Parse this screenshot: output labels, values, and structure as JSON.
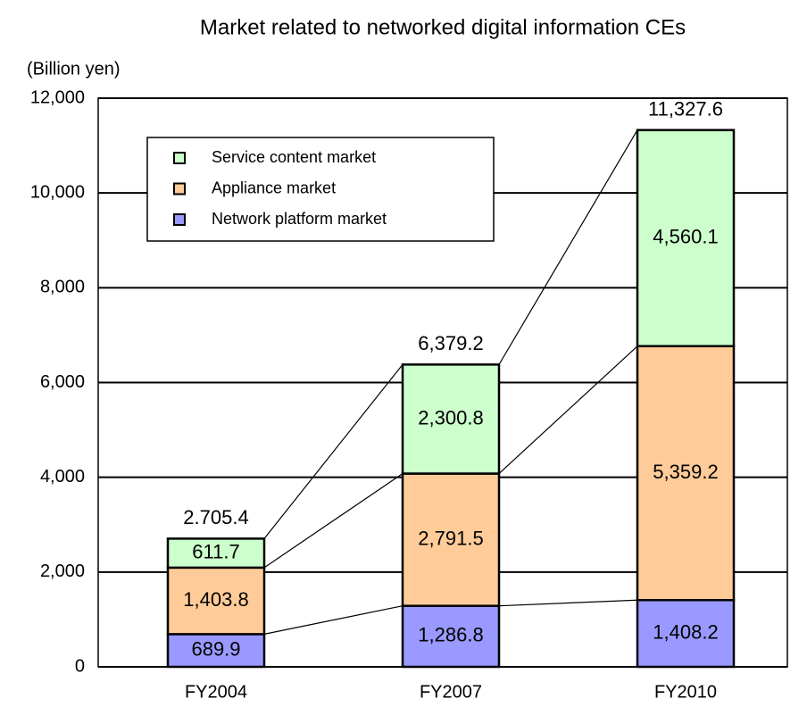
{
  "chart_data": {
    "type": "stacked_bar",
    "title": "Market related to networked digital information CEs",
    "y_axis_label": "(Billion yen)",
    "categories": [
      "FY2004",
      "FY2007",
      "FY2010"
    ],
    "series": [
      {
        "name": "Network platform market",
        "color": "#9999ff",
        "values": [
          689.9,
          1286.8,
          1408.2
        ],
        "value_labels": [
          "689.9",
          "1,286.8",
          "1,408.2"
        ]
      },
      {
        "name": "Appliance market",
        "color": "#ffcc99",
        "values": [
          1403.8,
          2791.5,
          5359.2
        ],
        "value_labels": [
          "1,403.8",
          "2,791.5",
          "5,359.2"
        ]
      },
      {
        "name": "Service content market",
        "color": "#ccffcc",
        "values": [
          611.7,
          2300.8,
          4560.1
        ],
        "value_labels": [
          "611.7",
          "2,300.8",
          "4,560.1"
        ]
      }
    ],
    "totals": [
      2705.4,
      6379.2,
      11327.6
    ],
    "total_labels": [
      "2.705.4",
      "6,379.2",
      "11,327.6"
    ],
    "ylim": [
      0,
      12000
    ],
    "yticks": [
      0,
      {
        "value": 2000,
        "label": "2,000"
      },
      {
        "value": 4000,
        "label": "4,000"
      },
      {
        "value": 6000,
        "label": "6,000"
      },
      {
        "value": 8000,
        "label": "8,000"
      },
      {
        "value": 10000,
        "label": "10,000"
      },
      {
        "value": 12000,
        "label": "12,000"
      }
    ],
    "grid": true,
    "legend": "upper left"
  }
}
